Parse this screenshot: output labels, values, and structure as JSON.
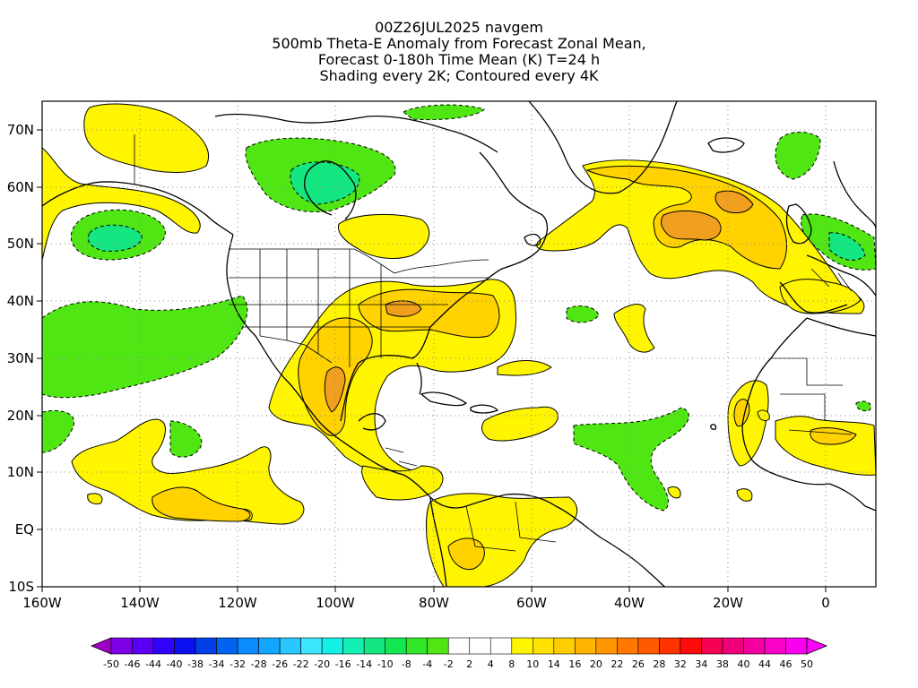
{
  "title": {
    "line1": "00Z26JUL2025 navgem",
    "line2": "500mb Theta-E Anomaly from Forecast Zonal Mean,",
    "line3": "Forecast 0-180h Time Mean (K) T=24 h",
    "line4": "Shading every 2K; Contoured every 4K"
  },
  "map": {
    "lat_labels": [
      "70N",
      "60N",
      "50N",
      "40N",
      "30N",
      "20N",
      "10N",
      "EQ",
      "10S"
    ],
    "lon_labels": [
      "160W",
      "140W",
      "120W",
      "100W",
      "80W",
      "60W",
      "40W",
      "20W",
      "0"
    ],
    "lat_range": [
      -10,
      75
    ],
    "lon_range": [
      -160,
      10
    ],
    "grid": "dotted"
  },
  "colorbar": {
    "labels": [
      "-50",
      "-46",
      "-44",
      "-40",
      "-38",
      "-34",
      "-32",
      "-28",
      "-26",
      "-22",
      "-20",
      "-16",
      "-14",
      "-10",
      "-8",
      "-4",
      "-2",
      "2",
      "4",
      "8",
      "10",
      "14",
      "16",
      "20",
      "22",
      "26",
      "28",
      "32",
      "34",
      "38",
      "40",
      "44",
      "46",
      "50"
    ],
    "colors": [
      "#a000c8",
      "#7d00e6",
      "#5a00f5",
      "#3200ff",
      "#0a10f0",
      "#0040e6",
      "#0064f0",
      "#0a8cff",
      "#14a5ff",
      "#28c8ff",
      "#3ce6ff",
      "#14f0e6",
      "#14f0b4",
      "#14e682",
      "#14e650",
      "#32e628",
      "#50e614",
      "#ffffff",
      "#ffffff",
      "#ffffff",
      "#fff500",
      "#ffe100",
      "#ffcd00",
      "#ffb400",
      "#ff9600",
      "#ff7800",
      "#ff5a00",
      "#ff3200",
      "#ff0a0a",
      "#f50050",
      "#f00078",
      "#f500a0",
      "#fa00c8",
      "#fa00f0",
      "#ff00ff"
    ],
    "accent_colors": {
      "warm_1": "#fff500",
      "warm_2": "#ffd200",
      "warm_3": "#f0a01e",
      "cool_1": "#50e614",
      "cool_2": "#14e682"
    }
  }
}
